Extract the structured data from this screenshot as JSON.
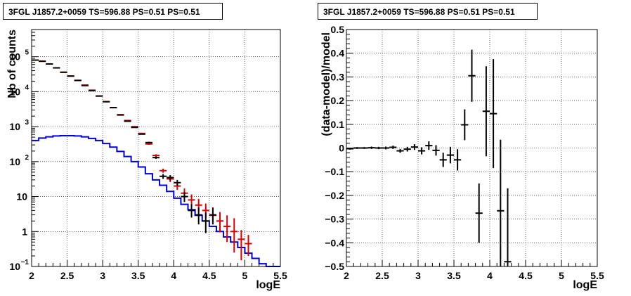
{
  "chart_data": [
    {
      "type": "histogram-line",
      "title": "3FGL J1857.2+0059 TS=596.88 PS=0.51 PS=0.51",
      "xlabel": "logE",
      "ylabel": "Nb of counts",
      "xlim": [
        2,
        5.5
      ],
      "ylim": [
        0.1,
        600000
      ],
      "yscale": "log",
      "grid": true,
      "x_ticks": [
        "2",
        "2.5",
        "3",
        "3.5",
        "4",
        "4.5",
        "5",
        "5.5"
      ],
      "y_ticks": [
        {
          "value": 0.1,
          "label": "10",
          "exp": "−1"
        },
        {
          "value": 1,
          "label": "1",
          "exp": ""
        },
        {
          "value": 10,
          "label": "10",
          "exp": ""
        },
        {
          "value": 100,
          "label": "10",
          "exp": "2"
        },
        {
          "value": 1000,
          "label": "10",
          "exp": "3"
        },
        {
          "value": 10000,
          "label": "10",
          "exp": "4"
        },
        {
          "value": 100000,
          "label": "10",
          "exp": "5"
        }
      ],
      "bin_width": 0.1,
      "series": [
        {
          "color": "#0000dd",
          "style": "step",
          "x": [
            2.0,
            2.1,
            2.2,
            2.3,
            2.4,
            2.5,
            2.6,
            2.7,
            2.8,
            2.9,
            3.0,
            3.1,
            3.2,
            3.3,
            3.4,
            3.5,
            3.6,
            3.7,
            3.8,
            3.9,
            4.0,
            4.1,
            4.2,
            4.3,
            4.4,
            4.5,
            4.6,
            4.7,
            4.8,
            4.9,
            5.0,
            5.1,
            5.2,
            5.3,
            5.4
          ],
          "values": [
            400,
            470,
            510,
            540,
            550,
            550,
            540,
            510,
            460,
            400,
            330,
            260,
            195,
            140,
            100,
            70,
            45,
            30,
            21,
            14,
            9,
            6,
            4.2,
            2.9,
            2,
            1.4,
            1,
            0.7,
            0.5,
            0.35,
            0.24,
            0.17,
            0.12,
            0.1,
            0.1
          ]
        },
        {
          "color": "#dd0000",
          "style": "points",
          "x": [
            2.05,
            2.15,
            2.25,
            2.35,
            2.45,
            2.55,
            2.65,
            2.75,
            2.85,
            2.95,
            3.05,
            3.15,
            3.25,
            3.35,
            3.45,
            3.55,
            3.65,
            3.75,
            3.85,
            3.95,
            4.05,
            4.15,
            4.25,
            4.35,
            4.45,
            4.55,
            4.65,
            4.75,
            4.85,
            4.95,
            5.05
          ],
          "values": [
            80000,
            75000,
            62000,
            48000,
            36000,
            28000,
            21000,
            15500,
            11000,
            7500,
            5200,
            3500,
            2200,
            1500,
            1000,
            640,
            320,
            150,
            55,
            32,
            20,
            12.5,
            8,
            5.7,
            4,
            2.9,
            2,
            1.4,
            1,
            0.6,
            0.45
          ],
          "err_low": [
            79000,
            74000,
            61500,
            47500,
            35700,
            27700,
            20800,
            15300,
            10900,
            7400,
            5100,
            3440,
            2150,
            1460,
            970,
            620,
            305,
            140,
            48,
            26,
            15.5,
            9,
            5.5,
            3.7,
            2.4,
            1.6,
            0.95,
            0.5,
            0.25,
            0.15,
            0.2
          ],
          "err_high": [
            81000,
            76000,
            62500,
            48500,
            36300,
            28300,
            21200,
            15700,
            11100,
            7600,
            5300,
            3560,
            2250,
            1540,
            1030,
            660,
            335,
            162,
            63,
            38,
            26,
            17,
            11.5,
            8.6,
            6.3,
            4.9,
            3.6,
            2.9,
            2.4,
            1.1,
            0.8
          ]
        },
        {
          "color": "#000000",
          "style": "points",
          "x": [
            2.05,
            2.15,
            2.25,
            2.35,
            2.45,
            2.55,
            2.65,
            2.75,
            2.85,
            2.95,
            3.05,
            3.15,
            3.25,
            3.35,
            3.45,
            3.55,
            3.65,
            3.75,
            3.85,
            3.95,
            4.05,
            4.15,
            4.25,
            4.35,
            4.45,
            4.55
          ],
          "values": [
            80000,
            74000,
            62000,
            48000,
            36000,
            28000,
            21000,
            15000,
            10800,
            7500,
            5150,
            3500,
            2150,
            1430,
            950,
            610,
            350,
            130,
            38,
            35,
            25,
            10,
            4,
            3,
            2,
            3
          ],
          "err_low": [
            79000,
            73000,
            61500,
            47500,
            35700,
            27700,
            20800,
            14800,
            10700,
            7400,
            5080,
            3440,
            2100,
            1390,
            920,
            590,
            330,
            120,
            32,
            29,
            20,
            7,
            2.5,
            1.6,
            0.9,
            1.6
          ],
          "err_high": [
            81000,
            75000,
            62500,
            48500,
            36300,
            28300,
            21200,
            15200,
            10900,
            7600,
            5220,
            3560,
            2200,
            1470,
            980,
            630,
            370,
            140,
            44,
            41,
            30,
            13.5,
            6,
            4.8,
            3.5,
            4.8
          ]
        }
      ]
    },
    {
      "type": "scatter",
      "title": "3FGL J1857.2+0059 TS=596.88 PS=0.51 PS=0.51",
      "xlabel": "logE",
      "ylabel": "(data-model)/model",
      "xlim": [
        2,
        5.5
      ],
      "ylim": [
        -0.5,
        0.5
      ],
      "grid": true,
      "x_ticks": [
        "2",
        "2.5",
        "3",
        "3.5",
        "4",
        "4.5",
        "5",
        "5.5"
      ],
      "y_ticks": [
        "−0.5",
        "−0.4",
        "−0.3",
        "−0.2",
        "−0.1",
        "0",
        "0.1",
        "0.2",
        "0.3",
        "0.4",
        "0.5"
      ],
      "y_tick_values": [
        -0.5,
        -0.4,
        -0.3,
        -0.2,
        -0.1,
        0,
        0.1,
        0.2,
        0.3,
        0.4,
        0.5
      ],
      "bin_width": 0.1,
      "series": [
        {
          "color": "#000000",
          "x": [
            2.05,
            2.15,
            2.25,
            2.35,
            2.45,
            2.55,
            2.65,
            2.75,
            2.85,
            2.95,
            3.05,
            3.15,
            3.25,
            3.35,
            3.45,
            3.55,
            3.65,
            3.75,
            3.85,
            3.95,
            4.05,
            4.15,
            4.25
          ],
          "values": [
            -0.003,
            0.0,
            0.0,
            0.001,
            0.0,
            0.0,
            0.003,
            -0.012,
            -0.005,
            0.004,
            -0.012,
            0.01,
            -0.01,
            -0.05,
            -0.03,
            -0.05,
            0.098,
            0.305,
            -0.275,
            0.155,
            0.145,
            -0.265,
            -0.48
          ],
          "err": [
            0.004,
            0.004,
            0.004,
            0.005,
            0.005,
            0.006,
            0.007,
            0.008,
            0.01,
            0.012,
            0.015,
            0.018,
            0.022,
            0.03,
            0.035,
            0.045,
            0.065,
            0.11,
            0.125,
            0.19,
            0.23,
            0.3,
            0.31
          ]
        }
      ]
    }
  ]
}
